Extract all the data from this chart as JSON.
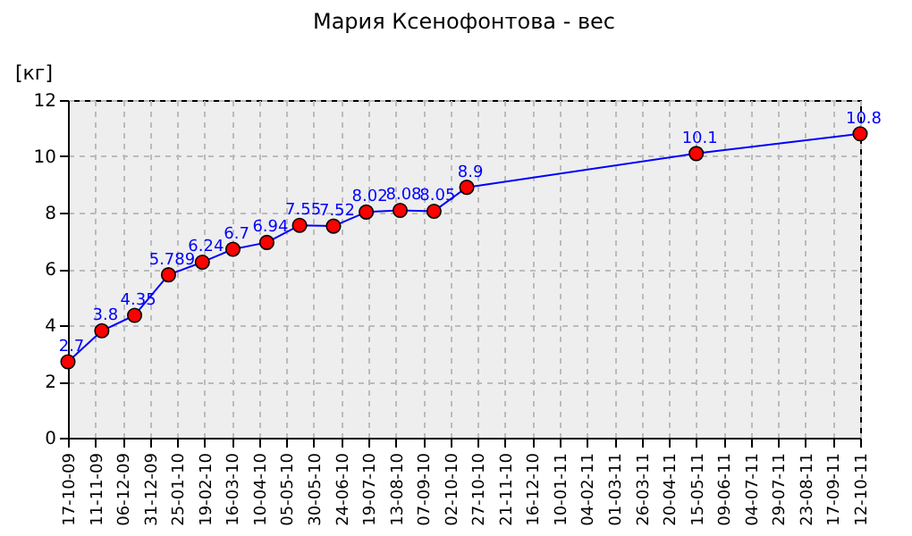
{
  "chart_data": {
    "type": "line",
    "title": "Мария Ксенофонтова - вес",
    "ylabel": "[кг]",
    "x": [
      "2009-10-17",
      "2009-11-17",
      "2009-12-17",
      "2010-01-17",
      "2010-02-17",
      "2010-03-17",
      "2010-04-17",
      "2010-05-17",
      "2010-06-17",
      "2010-07-17",
      "2010-08-17",
      "2010-09-17",
      "2010-10-17",
      "2011-05-15",
      "2011-10-12"
    ],
    "series": [
      {
        "color": "#0000ff",
        "values": [
          2.7,
          3.8,
          4.35,
          5.789,
          6.24,
          6.7,
          6.94,
          7.55,
          7.52,
          8.02,
          8.08,
          8.05,
          8.9,
          10.1,
          10.8
        ]
      }
    ],
    "data_labels": true,
    "marker": "circle",
    "line_style": "solid",
    "grid": true,
    "xlim": [
      "2009-10-17",
      "2011-10-12"
    ],
    "xticks": [
      {
        "value": "2009-10-17",
        "label": "17-10-09"
      },
      {
        "value": "2009-11-11",
        "label": "11-11-09"
      },
      {
        "value": "2009-12-06",
        "label": "06-12-09"
      },
      {
        "value": "2009-12-31",
        "label": "31-12-09"
      },
      {
        "value": "2010-01-25",
        "label": "25-01-10"
      },
      {
        "value": "2010-02-19",
        "label": "19-02-10"
      },
      {
        "value": "2010-03-16",
        "label": "16-03-10"
      },
      {
        "value": "2010-04-10",
        "label": "10-04-10"
      },
      {
        "value": "2010-05-05",
        "label": "05-05-10"
      },
      {
        "value": "2010-05-30",
        "label": "30-05-10"
      },
      {
        "value": "2010-06-24",
        "label": "24-06-10"
      },
      {
        "value": "2010-07-19",
        "label": "19-07-10"
      },
      {
        "value": "2010-08-13",
        "label": "13-08-10"
      },
      {
        "value": "2010-09-07",
        "label": "07-09-10"
      },
      {
        "value": "2010-10-02",
        "label": "02-10-10"
      },
      {
        "value": "2010-10-27",
        "label": "27-10-10"
      },
      {
        "value": "2010-11-21",
        "label": "21-11-10"
      },
      {
        "value": "2010-12-16",
        "label": "16-12-10"
      },
      {
        "value": "2011-01-10",
        "label": "10-01-11"
      },
      {
        "value": "2011-02-04",
        "label": "04-02-11"
      },
      {
        "value": "2011-03-01",
        "label": "01-03-11"
      },
      {
        "value": "2011-03-26",
        "label": "26-03-11"
      },
      {
        "value": "2011-04-20",
        "label": "20-04-11"
      },
      {
        "value": "2011-05-15",
        "label": "15-05-11"
      },
      {
        "value": "2011-06-09",
        "label": "09-06-11"
      },
      {
        "value": "2011-07-04",
        "label": "04-07-11"
      },
      {
        "value": "2011-07-29",
        "label": "29-07-11"
      },
      {
        "value": "2011-08-23",
        "label": "23-08-11"
      },
      {
        "value": "2011-09-17",
        "label": "17-09-11"
      },
      {
        "value": "2011-10-12",
        "label": "12-10-11"
      }
    ],
    "ylim": [
      0,
      12
    ],
    "yticks": [
      0,
      2,
      4,
      6,
      8,
      10,
      12
    ]
  }
}
